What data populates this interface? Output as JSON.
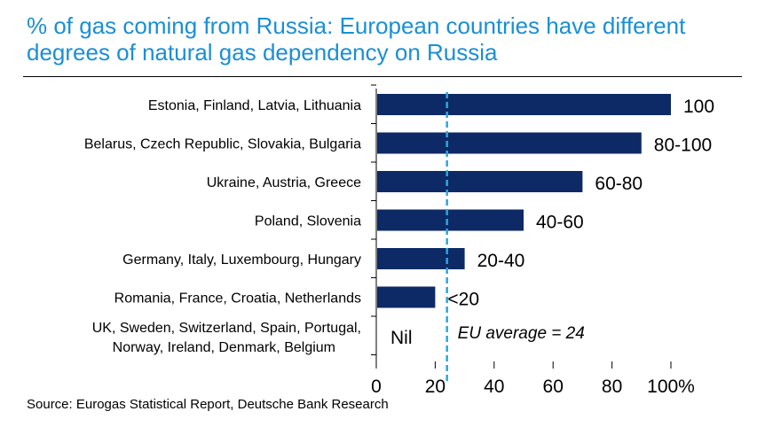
{
  "colors": {
    "title": "#1a8fd6",
    "bar": "#0d2a66",
    "eu_line": "#29a7e0",
    "text": "#000000"
  },
  "chart_data": {
    "type": "bar",
    "orientation": "horizontal",
    "title": "% of gas coming from Russia: European countries have different degrees of natural gas dependency on Russia",
    "categories": [
      "Estonia, Finland, Latvia, Lithuania",
      "Belarus, Czech Republic, Slovakia, Bulgaria",
      "Ukraine, Austria, Greece",
      "Poland, Slovenia",
      "Germany, Italy, Luxembourg, Hungary",
      "Romania, France, Croatia, Netherlands",
      "UK, Sweden, Switzerland, Spain, Portugal, Norway, Ireland, Denmark, Belgium"
    ],
    "values": [
      100,
      90,
      70,
      50,
      30,
      20,
      0
    ],
    "data_labels": [
      "100",
      "80-100",
      "60-80",
      "40-60",
      "20-40",
      "<20",
      "Nil"
    ],
    "xlim": [
      0,
      100
    ],
    "xticks": [
      "0",
      "20",
      "40",
      "60",
      "80",
      "100%"
    ],
    "xtick_values": [
      0,
      20,
      40,
      60,
      80,
      100
    ],
    "grid": false,
    "reference_line": {
      "value": 24,
      "label": "EU average = 24"
    },
    "source": "Source: Eurogas Statistical Report, Deutsche Bank Research"
  }
}
